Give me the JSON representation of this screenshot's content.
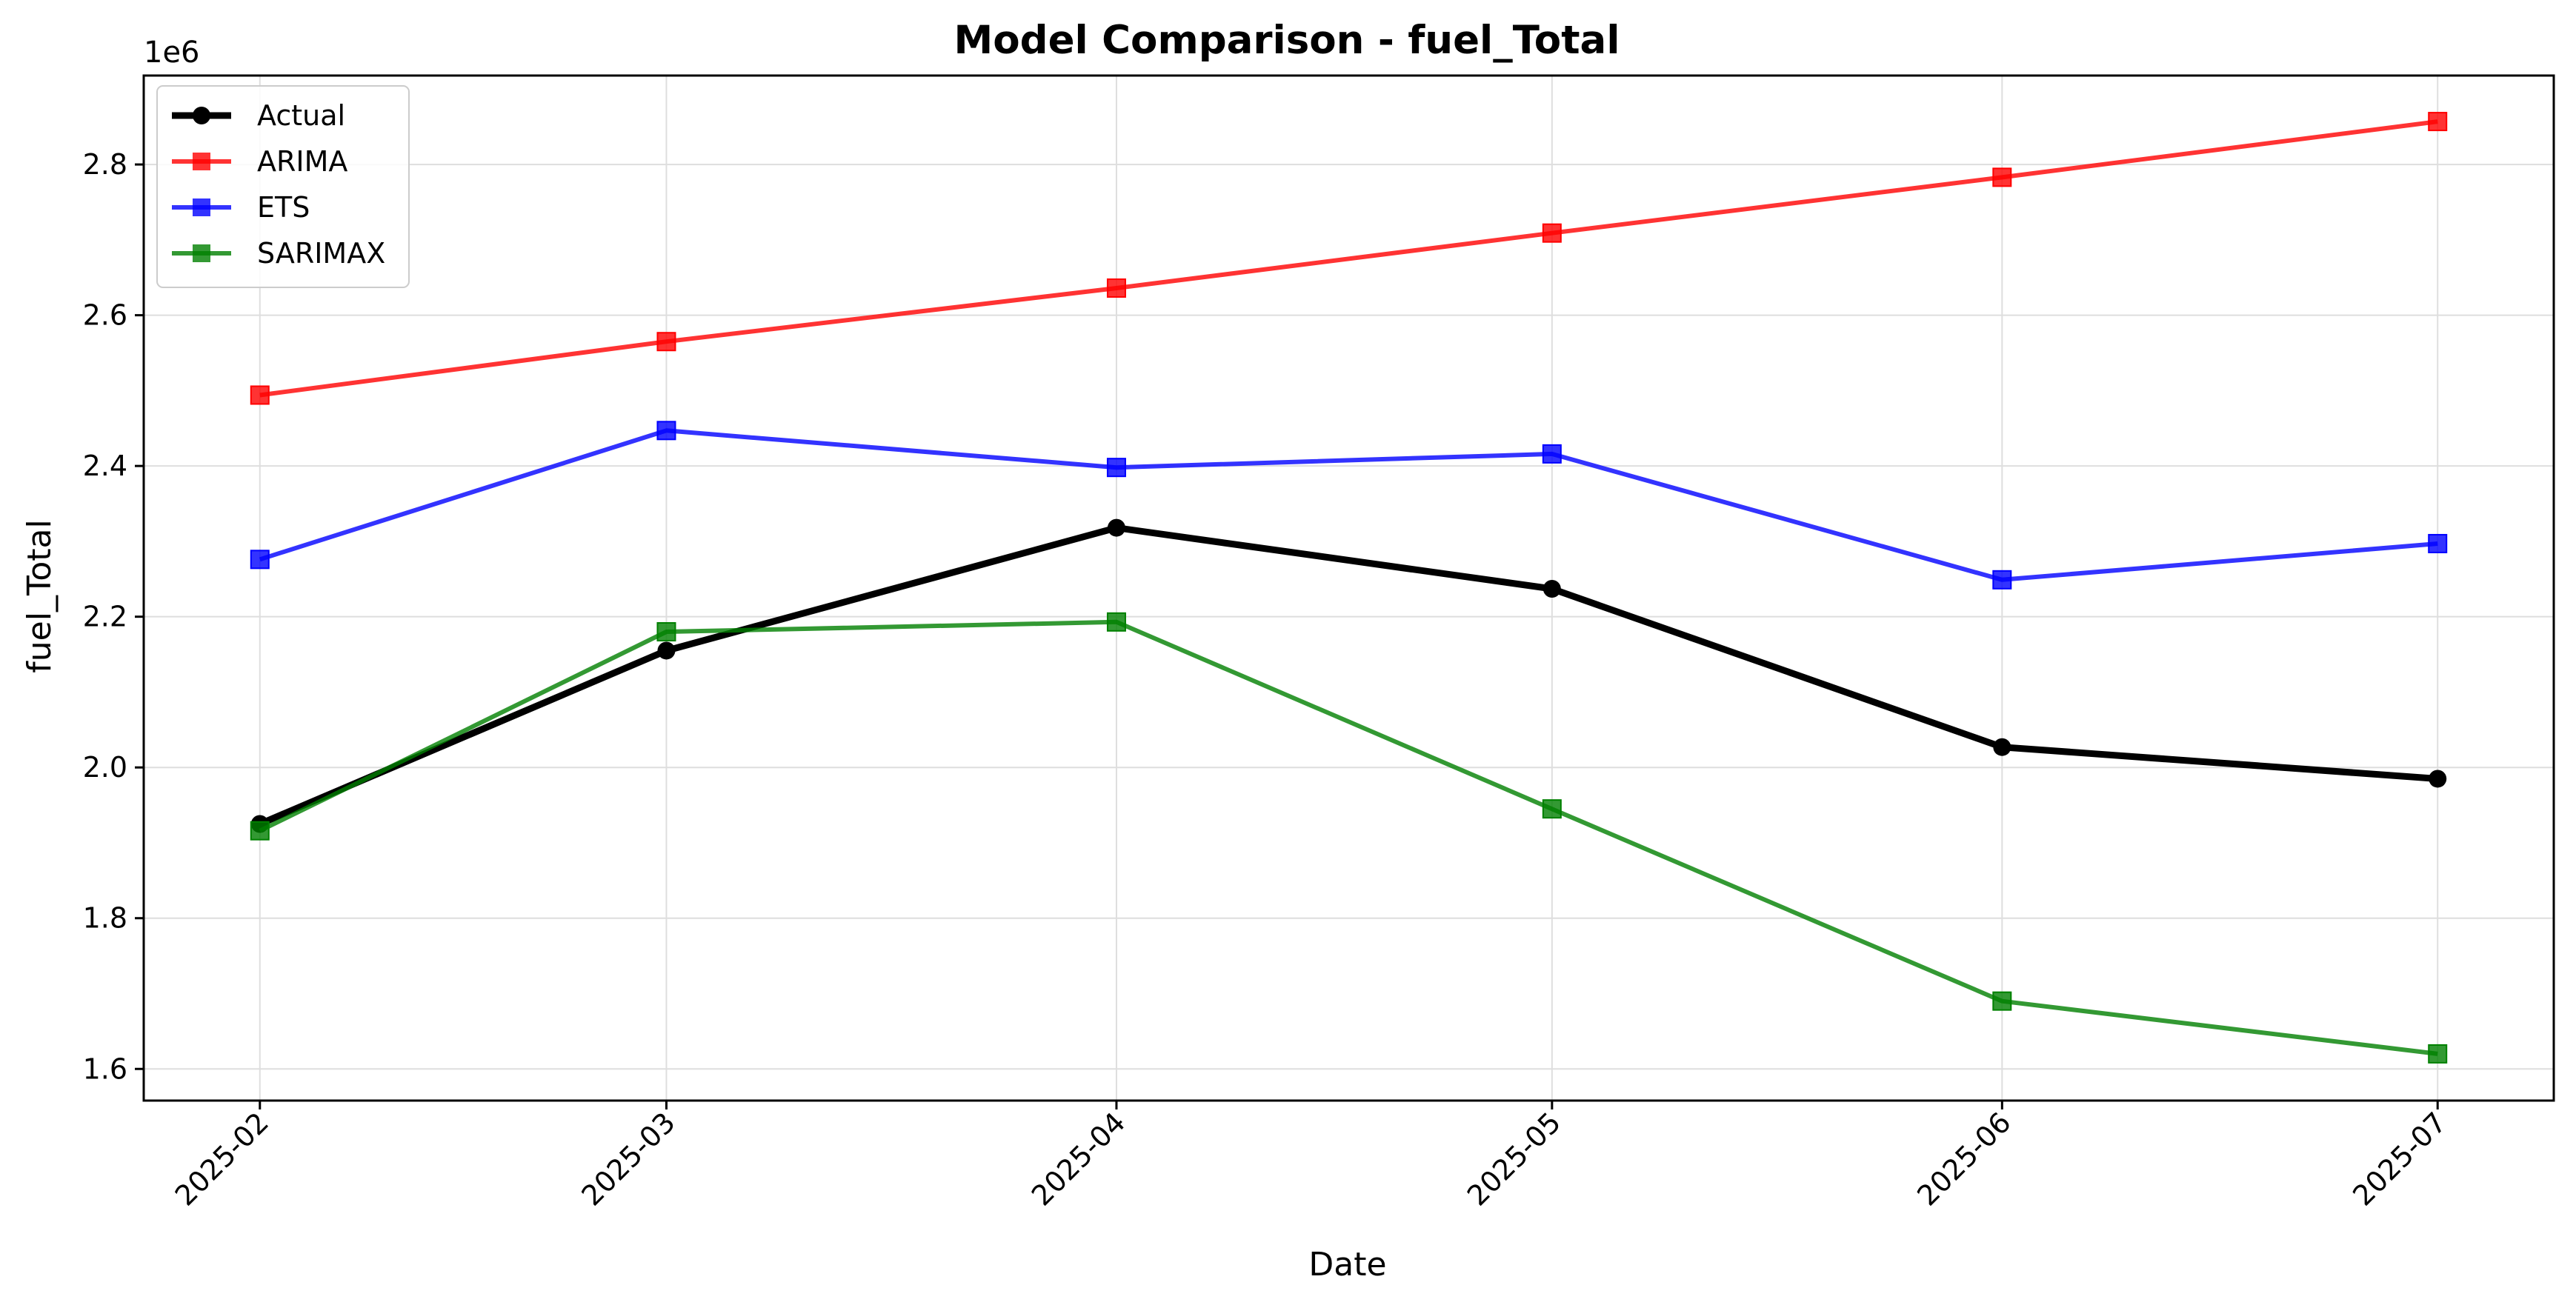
{
  "chart_data": {
    "type": "line",
    "title": "Model Comparison - fuel_Total",
    "xlabel": "Date",
    "ylabel": "fuel_Total",
    "y_offset_label": "1e6",
    "x": [
      "2025-02-01",
      "2025-03-01",
      "2025-04-01",
      "2025-05-01",
      "2025-06-01",
      "2025-07-01"
    ],
    "x_tick_labels": [
      "2025-02",
      "2025-03",
      "2025-04",
      "2025-05",
      "2025-06",
      "2025-07"
    ],
    "y_ticks": [
      1.6,
      1.8,
      2.0,
      2.2,
      2.4,
      2.6,
      2.8
    ],
    "y_tick_labels": [
      "1.6",
      "1.8",
      "2.0",
      "2.2",
      "2.4",
      "2.6",
      "2.8"
    ],
    "ylim": [
      1.558,
      2.918
    ],
    "xlim": [
      "2025-01-24",
      "2025-07-09"
    ],
    "y_scale_note": "values in units of 1e6",
    "grid": true,
    "legend_position": "top-left",
    "series": [
      {
        "name": "Actual",
        "color": "#000000",
        "marker": "circle",
        "values": [
          1.925,
          2.155,
          2.318,
          2.237,
          2.027,
          1.985
        ]
      },
      {
        "name": "ARIMA",
        "color": "#ff0000",
        "marker": "square",
        "values": [
          2.494,
          2.565,
          2.636,
          2.709,
          2.783,
          2.857
        ]
      },
      {
        "name": "ETS",
        "color": "#0000ff",
        "marker": "square",
        "values": [
          2.276,
          2.447,
          2.398,
          2.416,
          2.249,
          2.297
        ]
      },
      {
        "name": "SARIMAX",
        "color": "#008000",
        "marker": "square",
        "values": [
          1.916,
          2.18,
          2.193,
          1.945,
          1.69,
          1.62
        ]
      }
    ]
  }
}
